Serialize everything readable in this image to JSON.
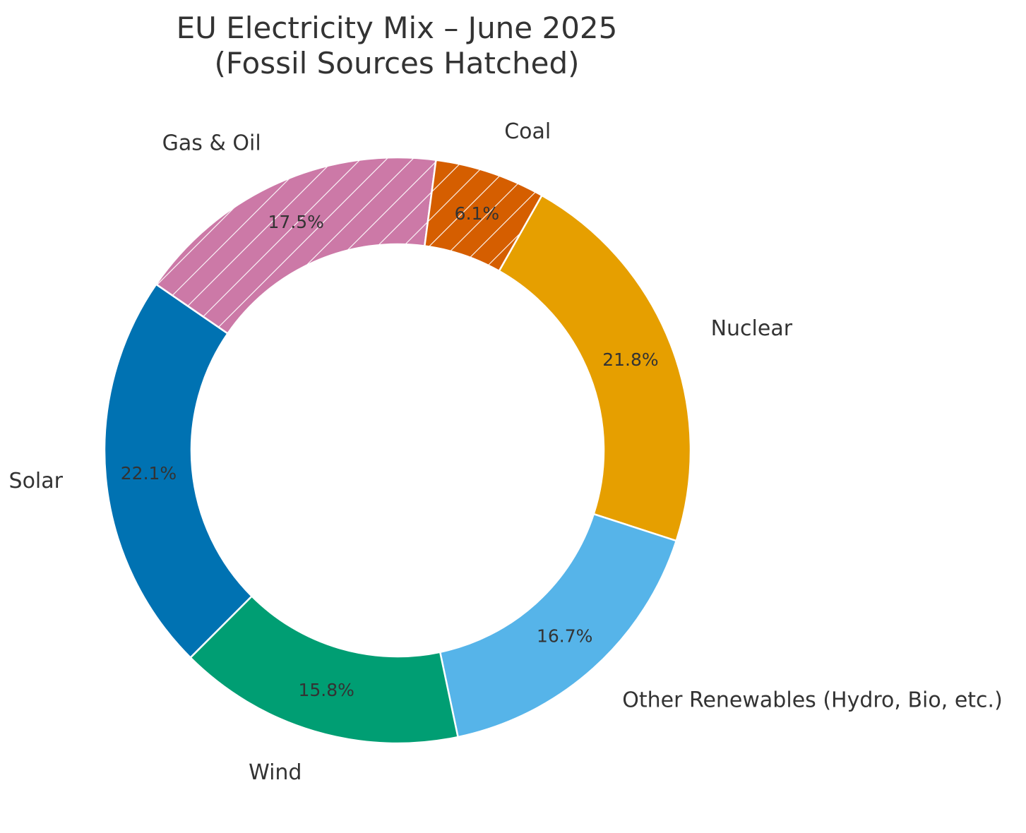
{
  "chart_data": {
    "type": "pie",
    "variant": "donut",
    "title_lines": [
      "EU Electricity Mix – June 2025",
      "(Fossil Sources Hatched)"
    ],
    "slices": [
      {
        "label": "Nuclear",
        "value": 21.8,
        "pct_label": "21.8%",
        "color": "#E69F00",
        "hatched": false
      },
      {
        "label": "Other Renewables (Hydro, Bio, etc.)",
        "value": 16.7,
        "pct_label": "16.7%",
        "color": "#56B4E9",
        "hatched": false
      },
      {
        "label": "Wind",
        "value": 15.8,
        "pct_label": "15.8%",
        "color": "#009E73",
        "hatched": false
      },
      {
        "label": "Solar",
        "value": 22.1,
        "pct_label": "22.1%",
        "color": "#0072B2",
        "hatched": false
      },
      {
        "label": "Gas & Oil",
        "value": 17.5,
        "pct_label": "17.5%",
        "color": "#CC79A7",
        "hatched": true
      },
      {
        "label": "Coal",
        "value": 6.1,
        "pct_label": "6.1%",
        "color": "#D55E00",
        "hatched": true
      }
    ],
    "start_angle_deg": 60.5,
    "direction": "clockwise",
    "legend": "none"
  }
}
